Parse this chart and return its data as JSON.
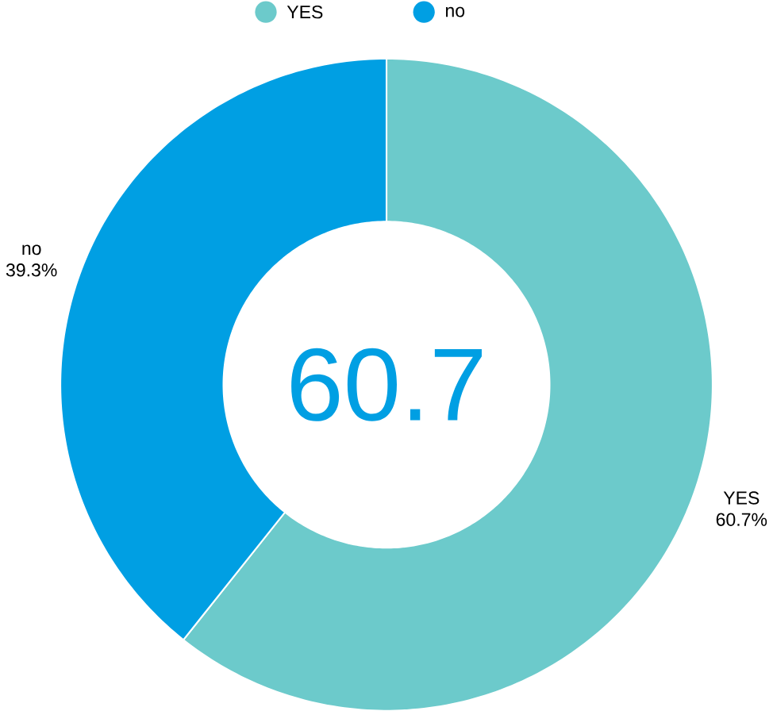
{
  "chart_data": {
    "type": "donut",
    "categories": [
      "YES",
      "no"
    ],
    "values": [
      60.7,
      39.3
    ],
    "colors": [
      "#6ccacb",
      "#009fe3"
    ],
    "value_labels": [
      "60.7%",
      "39.3%"
    ],
    "legend": "top",
    "annotations": [
      "60.7"
    ]
  }
}
